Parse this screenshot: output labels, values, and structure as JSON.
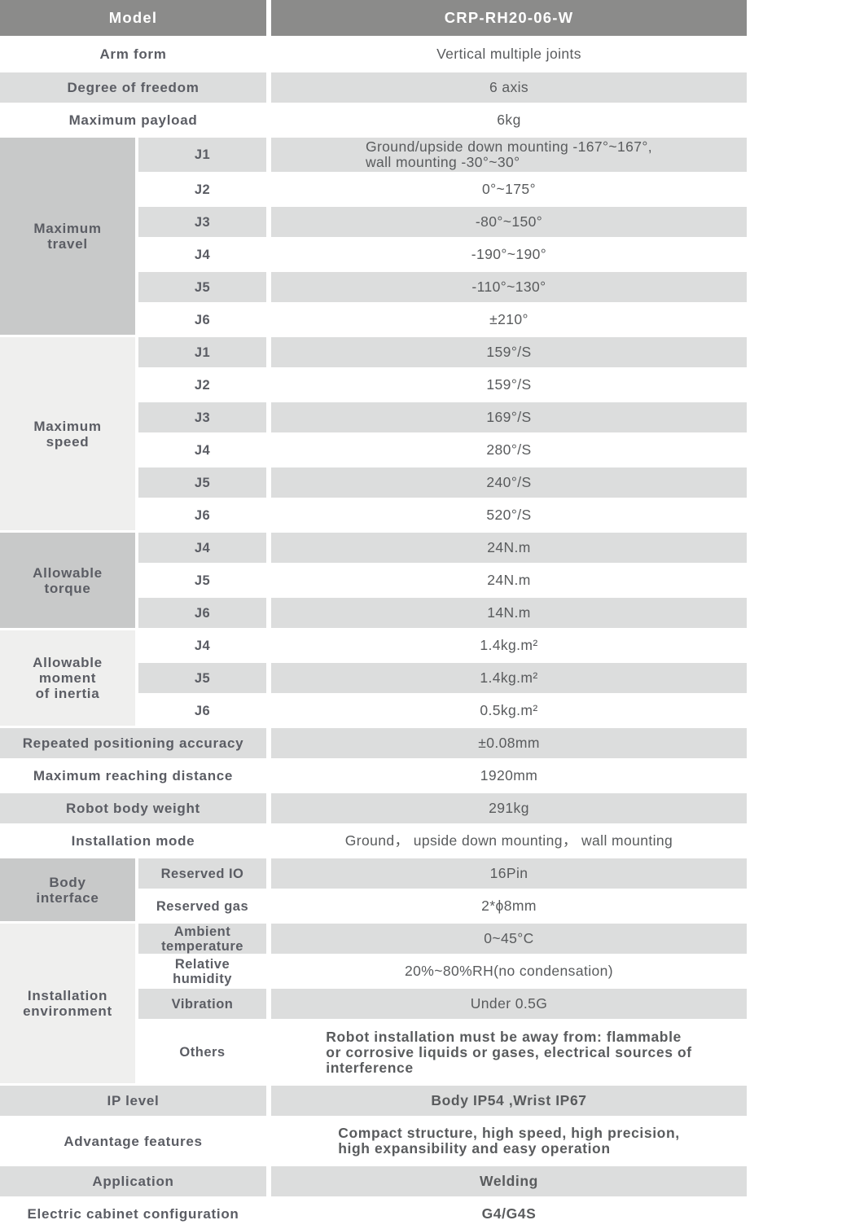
{
  "colors": {
    "header_bg": "#8b8b8a",
    "stripe": "#dcdddd",
    "group_dark": "#c8c9c9",
    "group_light": "#efefee",
    "label_text": "#5b5d64",
    "value_text": "#595b5d"
  },
  "header": {
    "label": "Model",
    "value": "CRP-RH20-06-W"
  },
  "rows": {
    "arm_form": {
      "label": "Arm form",
      "value": "Vertical multiple joints"
    },
    "degree_of_freedom": {
      "label": "Degree of freedom",
      "value": "6 axis"
    },
    "maximum_payload": {
      "label": "Maximum payload",
      "value": "6kg"
    },
    "repeated_positioning_accuracy": {
      "label": "Repeated positioning accuracy",
      "value": "±0.08mm"
    },
    "maximum_reaching_distance": {
      "label": "Maximum reaching distance",
      "value": "1920mm"
    },
    "robot_body_weight": {
      "label": "Robot body weight",
      "value": "291kg"
    },
    "installation_mode": {
      "label": "Installation mode",
      "value": "Ground， upside down mounting， wall mounting"
    },
    "ip_level": {
      "label": "IP level",
      "value": "Body IP54 ,Wrist IP67"
    },
    "advantage_features": {
      "label": "Advantage features",
      "value": "Compact structure, high speed, high precision,\nhigh expansibility and easy operation"
    },
    "application": {
      "label": "Application",
      "value": "Welding"
    },
    "electric_cabinet_configuration": {
      "label": "Electric cabinet configuration",
      "value": "G4/G4S"
    }
  },
  "groups": {
    "maximum_travel": {
      "label": "Maximum\ntravel",
      "items": [
        {
          "sub": "J1",
          "value": "Ground/upside down mounting -167°~167°,\nwall mounting -30°~30°"
        },
        {
          "sub": "J2",
          "value": "0°~175°"
        },
        {
          "sub": "J3",
          "value": "-80°~150°"
        },
        {
          "sub": "J4",
          "value": "-190°~190°"
        },
        {
          "sub": "J5",
          "value": "-110°~130°"
        },
        {
          "sub": "J6",
          "value": "±210°"
        }
      ]
    },
    "maximum_speed": {
      "label": "Maximum\nspeed",
      "items": [
        {
          "sub": "J1",
          "value": "159°/S"
        },
        {
          "sub": "J2",
          "value": "159°/S"
        },
        {
          "sub": "J3",
          "value": "169°/S"
        },
        {
          "sub": "J4",
          "value": "280°/S"
        },
        {
          "sub": "J5",
          "value": "240°/S"
        },
        {
          "sub": "J6",
          "value": "520°/S"
        }
      ]
    },
    "allowable_torque": {
      "label": "Allowable\ntorque",
      "items": [
        {
          "sub": "J4",
          "value": "24N.m"
        },
        {
          "sub": "J5",
          "value": "24N.m"
        },
        {
          "sub": "J6",
          "value": "14N.m"
        }
      ]
    },
    "allowable_moment_of_inertia": {
      "label": "Allowable\nmoment\nof inertia",
      "items": [
        {
          "sub": "J4",
          "value": "1.4kg.m²"
        },
        {
          "sub": "J5",
          "value": "1.4kg.m²"
        },
        {
          "sub": "J6",
          "value": "0.5kg.m²"
        }
      ]
    },
    "body_interface": {
      "label": "Body\ninterface",
      "items": [
        {
          "sub": "Reserved IO",
          "value": "16Pin"
        },
        {
          "sub": "Reserved gas",
          "value": "2*ϕ8mm"
        }
      ]
    },
    "installation_environment": {
      "label": "Installation\nenvironment",
      "items": [
        {
          "sub": "Ambient\ntemperature",
          "value": "0~45°C"
        },
        {
          "sub": "Relative\nhumidity",
          "value": "20%~80%RH(no condensation)"
        },
        {
          "sub": "Vibration",
          "value": "Under 0.5G"
        },
        {
          "sub": "Others",
          "value": "Robot installation must be away from: flammable\nor corrosive liquids or gases, electrical sources of\ninterference"
        }
      ]
    }
  }
}
